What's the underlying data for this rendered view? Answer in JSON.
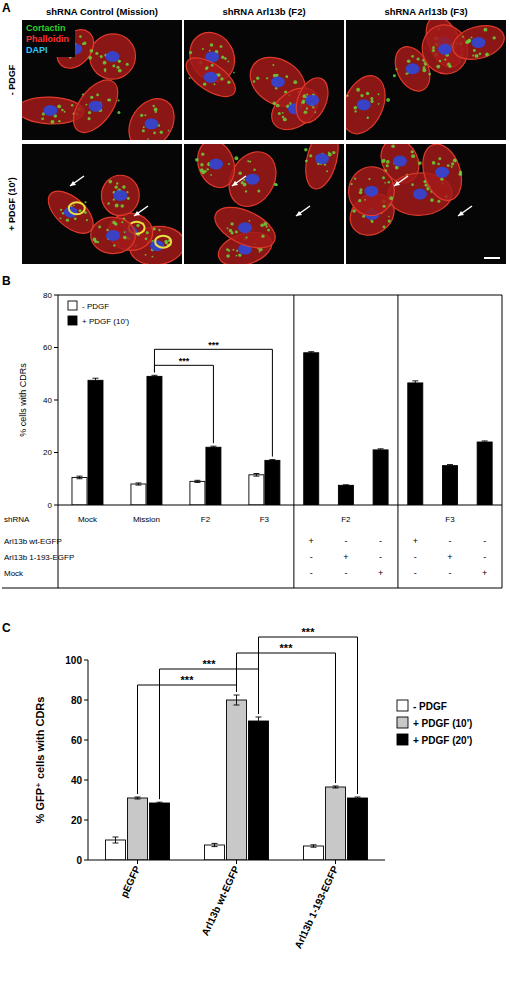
{
  "panel_letters": [
    "A",
    "B",
    "C"
  ],
  "image_panel": {
    "column_titles": [
      "shRNA Control (Mission)",
      "shRNA Arl13b (F2)",
      "shRNA Arl13b (F3)"
    ],
    "row_labels": [
      "- PDGF",
      "+ PDGF (10')"
    ],
    "channels": [
      {
        "name": "Cortactin",
        "color": "#2fd02f"
      },
      {
        "name": "Phalloidin",
        "color": "#ff3030"
      },
      {
        "name": "DAPI",
        "color": "#30c8ff"
      }
    ]
  },
  "chart_data": [
    {
      "type": "bar",
      "ylabel": "% cells with CDRs",
      "categories": [
        "Mock",
        "Mission",
        "F2",
        "F3",
        null,
        null,
        null,
        null,
        null,
        null
      ],
      "series": [
        {
          "name": "- PDGF",
          "color": "#ffffff",
          "values": [
            10.5,
            8,
            9,
            11.5,
            null,
            null,
            null,
            null,
            null,
            null
          ],
          "errors": [
            0.5,
            0.4,
            0.4,
            0.5,
            null,
            null,
            null,
            null,
            null,
            null
          ]
        },
        {
          "name": "+ PDGF (10')",
          "color": "#000000",
          "values": [
            47.5,
            49,
            22,
            17,
            58,
            7.5,
            21,
            46.5,
            15,
            24
          ],
          "errors": [
            0.8,
            0.4,
            0.4,
            0.3,
            0.4,
            0.2,
            0.4,
            0.8,
            0.4,
            0.4
          ]
        }
      ],
      "ylim": [
        0,
        80
      ],
      "yticks": [
        0,
        20,
        40,
        60,
        80
      ],
      "grid": false,
      "legend": "top-left",
      "annotations": [
        {
          "text": "***",
          "from": {
            "series": 1,
            "category": 1
          },
          "to": {
            "series": 1,
            "category": 2
          }
        },
        {
          "text": "***",
          "from": {
            "series": 1,
            "category": 1
          },
          "to": {
            "series": 1,
            "category": 3
          }
        }
      ],
      "design_table": {
        "shrna_label": "shRNA",
        "groups": [
          {
            "label": "F2",
            "size": 3
          },
          {
            "label": "F3",
            "size": 3
          }
        ],
        "rows": [
          {
            "label": "Arl13b wt-EGFP",
            "cells": [
              "+",
              "-",
              "-",
              "+",
              "-",
              "-"
            ]
          },
          {
            "label": "Arl13b 1-193-EGFP",
            "cells": [
              "-",
              "+",
              "-",
              "-",
              "+",
              "-"
            ]
          },
          {
            "label": "Mock",
            "cells": [
              "-",
              "-",
              "+",
              "-",
              "-",
              "+"
            ]
          }
        ]
      }
    },
    {
      "type": "bar",
      "ylabel": "% GFP⁺ cells with CDRs",
      "categories": [
        "pEGFP",
        "Arl13b wt-EGFP",
        "Arl13b 1-193-EGFP"
      ],
      "series": [
        {
          "name": "- PDGF",
          "color": "#ffffff",
          "values": [
            10,
            7.5,
            7
          ],
          "errors": [
            1.5,
            0.8,
            0.6
          ]
        },
        {
          "name": "+ PDGF (10')",
          "color": "#c8c8c8",
          "values": [
            31,
            80,
            36.5
          ],
          "errors": [
            0.5,
            2.5,
            0.5
          ]
        },
        {
          "name": "+ PDGF (20')",
          "color": "#000000",
          "values": [
            28.5,
            69.5,
            31
          ],
          "errors": [
            0.4,
            2,
            0.5
          ]
        }
      ],
      "ylim": [
        0,
        100
      ],
      "yticks": [
        0,
        20,
        40,
        60,
        80,
        100
      ],
      "grid": false,
      "legend": "right",
      "annotations": [
        {
          "text": "***",
          "from": {
            "series": 1,
            "category": 0
          },
          "to": {
            "series": 1,
            "category": 1
          }
        },
        {
          "text": "***",
          "from": {
            "series": 2,
            "category": 0
          },
          "to": {
            "series": 2,
            "category": 1
          }
        },
        {
          "text": "***",
          "from": {
            "series": 1,
            "category": 1
          },
          "to": {
            "series": 1,
            "category": 2
          }
        },
        {
          "text": "***",
          "from": {
            "series": 2,
            "category": 1
          },
          "to": {
            "series": 2,
            "category": 2
          }
        }
      ]
    }
  ]
}
